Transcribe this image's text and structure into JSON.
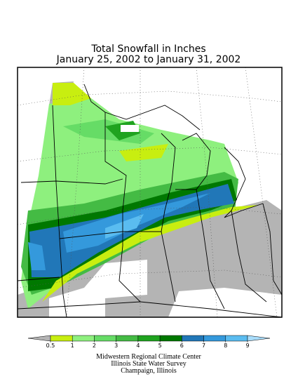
{
  "title": [
    "Total Snowfall in Inches",
    "January 25, 2002 to January 31, 2002"
  ],
  "legend": {
    "ticks": [
      0.5,
      1,
      2,
      3,
      4,
      5,
      6,
      7,
      8,
      9
    ],
    "colors": [
      "#b4b4b4",
      "#c8ee10",
      "#8ef07e",
      "#66dc66",
      "#44bb44",
      "#1fa31f",
      "#007800",
      "#2177b8",
      "#3499dc",
      "#5abcf0",
      "#a8dcfa"
    ]
  },
  "credits": [
    "Midwestern Regional Climate Center",
    "Illinois State Water Survey",
    "Champaign, Illinois"
  ]
}
